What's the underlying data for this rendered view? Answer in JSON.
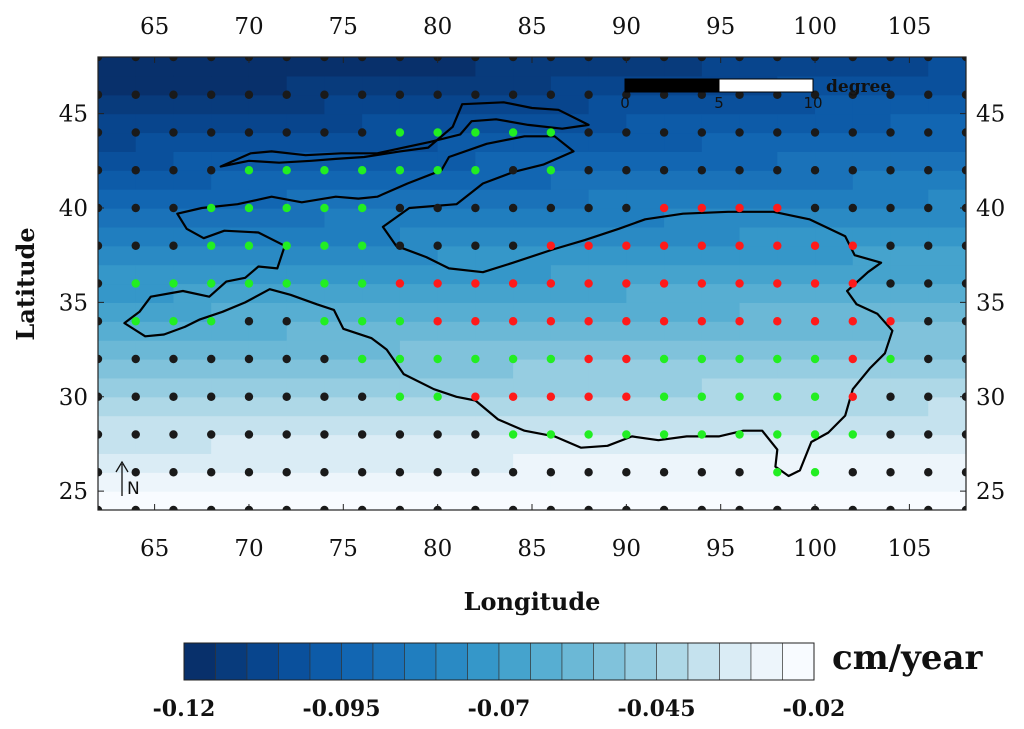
{
  "chart_data": {
    "type": "heatmap",
    "xlabel": "Longitude",
    "ylabel": "Latitude",
    "xlim": [
      62,
      108
    ],
    "ylim": [
      24,
      48
    ],
    "x_ticks": [
      65,
      70,
      75,
      80,
      85,
      90,
      95,
      100,
      105
    ],
    "y_ticks": [
      25,
      30,
      35,
      40,
      45
    ],
    "colorbar": {
      "unit": "cm/year",
      "min": -0.12,
      "max": -0.02,
      "tick_values": [
        -0.12,
        -0.095,
        -0.07,
        -0.045,
        -0.02
      ],
      "tick_labels": [
        "-0.12",
        "-0.095",
        "-0.07",
        "-0.045",
        "-0.02"
      ],
      "colors": [
        "#08306b",
        "#083b7c",
        "#08458d",
        "#0a509c",
        "#0d5ba8",
        "#1266b2",
        "#1a72b9",
        "#207ebf",
        "#2a8ac4",
        "#3597c9",
        "#45a3cd",
        "#57aed2",
        "#6bb8d6",
        "#80c2db",
        "#96cde1",
        "#aed8e7",
        "#c5e2ee",
        "#daecf5",
        "#edf5fb",
        "#f8fbff"
      ]
    },
    "scale_bar": {
      "title": "degree",
      "labels": [
        "0",
        "5",
        "10"
      ],
      "values": [
        0,
        5,
        10
      ]
    },
    "north_arrow": "N",
    "boundary_outline": [
      [
        63.4,
        33.9
      ],
      [
        64.2,
        34.5
      ],
      [
        64.8,
        35.3
      ],
      [
        66.5,
        35.6
      ],
      [
        67.9,
        35.3
      ],
      [
        68.8,
        36.1
      ],
      [
        69.8,
        36.3
      ],
      [
        70.5,
        36.9
      ],
      [
        71.5,
        36.8
      ],
      [
        71.9,
        38.0
      ],
      [
        70.5,
        38.7
      ],
      [
        68.7,
        38.8
      ],
      [
        67.6,
        38.4
      ],
      [
        66.7,
        38.9
      ],
      [
        66.2,
        39.7
      ],
      [
        67.5,
        40.0
      ],
      [
        69.4,
        40.2
      ],
      [
        71.2,
        40.6
      ],
      [
        72.8,
        40.3
      ],
      [
        74.6,
        40.6
      ],
      [
        75.8,
        40.5
      ],
      [
        76.8,
        40.6
      ],
      [
        78.4,
        41.3
      ],
      [
        80.2,
        42.0
      ],
      [
        80.6,
        42.7
      ],
      [
        82.6,
        43.4
      ],
      [
        84.6,
        43.8
      ],
      [
        86.2,
        43.8
      ],
      [
        87.2,
        43.0
      ],
      [
        85.6,
        42.3
      ],
      [
        84.0,
        41.9
      ],
      [
        82.4,
        41.3
      ],
      [
        81.0,
        40.2
      ],
      [
        78.5,
        40.0
      ],
      [
        77.1,
        39.0
      ],
      [
        77.8,
        38.0
      ],
      [
        79.4,
        37.4
      ],
      [
        80.6,
        36.8
      ],
      [
        82.4,
        36.6
      ],
      [
        84.0,
        37.1
      ],
      [
        86.1,
        37.8
      ],
      [
        87.8,
        38.3
      ],
      [
        89.6,
        38.9
      ],
      [
        91.0,
        39.4
      ],
      [
        93.0,
        39.7
      ],
      [
        95.4,
        39.8
      ],
      [
        97.8,
        39.8
      ],
      [
        99.7,
        39.4
      ],
      [
        101.6,
        38.5
      ],
      [
        102.1,
        37.5
      ],
      [
        103.5,
        37.1
      ],
      [
        102.8,
        36.6
      ],
      [
        101.7,
        35.6
      ],
      [
        102.2,
        34.9
      ],
      [
        103.3,
        34.4
      ],
      [
        104.1,
        33.5
      ],
      [
        103.7,
        32.3
      ],
      [
        102.9,
        31.5
      ],
      [
        102.0,
        30.4
      ],
      [
        101.6,
        29.0
      ],
      [
        100.7,
        28.1
      ],
      [
        99.8,
        27.6
      ],
      [
        99.2,
        26.1
      ],
      [
        98.6,
        25.8
      ],
      [
        97.9,
        26.3
      ],
      [
        98.0,
        27.2
      ],
      [
        97.2,
        28.2
      ],
      [
        96.2,
        28.2
      ],
      [
        94.9,
        27.9
      ],
      [
        93.2,
        27.9
      ],
      [
        91.7,
        27.7
      ],
      [
        90.3,
        27.9
      ],
      [
        89.0,
        27.4
      ],
      [
        87.6,
        27.3
      ],
      [
        86.2,
        27.9
      ],
      [
        84.6,
        28.2
      ],
      [
        83.2,
        28.8
      ],
      [
        82.0,
        29.8
      ],
      [
        81.0,
        30.0
      ],
      [
        79.8,
        30.4
      ],
      [
        78.2,
        31.2
      ],
      [
        77.3,
        32.5
      ],
      [
        76.5,
        33.1
      ],
      [
        75.0,
        33.6
      ],
      [
        74.5,
        34.6
      ],
      [
        73.6,
        34.9
      ],
      [
        72.2,
        35.4
      ],
      [
        71.1,
        35.7
      ],
      [
        69.8,
        35.0
      ],
      [
        68.6,
        34.5
      ],
      [
        67.4,
        34.1
      ],
      [
        66.6,
        33.7
      ],
      [
        65.5,
        33.3
      ],
      [
        64.5,
        33.2
      ],
      [
        63.4,
        33.9
      ]
    ],
    "north_outline": [
      [
        68.5,
        42.2
      ],
      [
        70.0,
        42.5
      ],
      [
        71.6,
        42.4
      ],
      [
        73.3,
        42.5
      ],
      [
        74.6,
        42.6
      ],
      [
        76.1,
        42.7
      ],
      [
        78.0,
        43.0
      ],
      [
        79.5,
        43.2
      ],
      [
        80.8,
        44.3
      ],
      [
        81.3,
        45.5
      ],
      [
        83.5,
        45.6
      ],
      [
        85.0,
        45.3
      ],
      [
        86.4,
        45.2
      ],
      [
        88.0,
        44.4
      ],
      [
        86.6,
        44.2
      ],
      [
        84.8,
        44.4
      ],
      [
        83.1,
        44.7
      ],
      [
        81.8,
        44.6
      ],
      [
        81.2,
        43.9
      ],
      [
        79.6,
        43.5
      ],
      [
        78.2,
        43.2
      ],
      [
        76.8,
        42.9
      ],
      [
        74.9,
        42.9
      ],
      [
        73.0,
        42.8
      ],
      [
        71.2,
        43.0
      ],
      [
        70.1,
        42.9
      ],
      [
        68.5,
        42.2
      ]
    ],
    "points": {
      "green": [
        [
          78,
          44
        ],
        [
          80,
          44
        ],
        [
          82,
          44
        ],
        [
          84,
          44
        ],
        [
          86,
          44
        ],
        [
          70,
          42
        ],
        [
          72,
          42
        ],
        [
          74,
          42
        ],
        [
          76,
          42
        ],
        [
          78,
          42
        ],
        [
          80,
          42
        ],
        [
          82,
          42
        ],
        [
          86,
          42
        ],
        [
          68,
          40
        ],
        [
          70,
          40
        ],
        [
          72,
          40
        ],
        [
          74,
          40
        ],
        [
          76,
          40
        ],
        [
          68,
          38
        ],
        [
          70,
          38
        ],
        [
          72,
          38
        ],
        [
          74,
          38
        ],
        [
          76,
          38
        ],
        [
          64,
          36
        ],
        [
          66,
          36
        ],
        [
          68,
          36
        ],
        [
          70,
          36
        ],
        [
          72,
          36
        ],
        [
          74,
          36
        ],
        [
          76,
          36
        ],
        [
          64,
          34
        ],
        [
          66,
          34
        ],
        [
          68,
          34
        ],
        [
          74,
          34
        ],
        [
          76,
          34
        ],
        [
          78,
          34
        ],
        [
          76,
          32
        ],
        [
          78,
          32
        ],
        [
          80,
          32
        ],
        [
          82,
          32
        ],
        [
          84,
          32
        ],
        [
          86,
          32
        ],
        [
          92,
          32
        ],
        [
          94,
          32
        ],
        [
          96,
          32
        ],
        [
          98,
          32
        ],
        [
          100,
          32
        ],
        [
          104,
          32
        ],
        [
          78,
          30
        ],
        [
          80,
          30
        ],
        [
          92,
          30
        ],
        [
          94,
          30
        ],
        [
          96,
          30
        ],
        [
          98,
          30
        ],
        [
          100,
          30
        ],
        [
          84,
          28
        ],
        [
          86,
          28
        ],
        [
          88,
          28
        ],
        [
          90,
          28
        ],
        [
          92,
          28
        ],
        [
          94,
          28
        ],
        [
          96,
          28
        ],
        [
          98,
          28
        ],
        [
          100,
          28
        ],
        [
          102,
          28
        ],
        [
          98,
          26
        ],
        [
          100,
          26
        ]
      ],
      "red": [
        [
          92,
          40
        ],
        [
          94,
          40
        ],
        [
          96,
          40
        ],
        [
          98,
          40
        ],
        [
          86,
          38
        ],
        [
          88,
          38
        ],
        [
          90,
          38
        ],
        [
          92,
          38
        ],
        [
          94,
          38
        ],
        [
          96,
          38
        ],
        [
          98,
          38
        ],
        [
          100,
          38
        ],
        [
          102,
          38
        ],
        [
          78,
          36
        ],
        [
          80,
          36
        ],
        [
          82,
          36
        ],
        [
          84,
          36
        ],
        [
          86,
          36
        ],
        [
          88,
          36
        ],
        [
          90,
          36
        ],
        [
          92,
          36
        ],
        [
          94,
          36
        ],
        [
          96,
          36
        ],
        [
          98,
          36
        ],
        [
          100,
          36
        ],
        [
          102,
          36
        ],
        [
          80,
          34
        ],
        [
          82,
          34
        ],
        [
          84,
          34
        ],
        [
          86,
          34
        ],
        [
          88,
          34
        ],
        [
          90,
          34
        ],
        [
          92,
          34
        ],
        [
          94,
          34
        ],
        [
          96,
          34
        ],
        [
          98,
          34
        ],
        [
          100,
          34
        ],
        [
          102,
          34
        ],
        [
          104,
          34
        ],
        [
          88,
          32
        ],
        [
          90,
          32
        ],
        [
          102,
          32
        ],
        [
          82,
          30
        ],
        [
          84,
          30
        ],
        [
          86,
          30
        ],
        [
          88,
          30
        ],
        [
          90,
          30
        ],
        [
          102,
          30
        ]
      ]
    }
  }
}
